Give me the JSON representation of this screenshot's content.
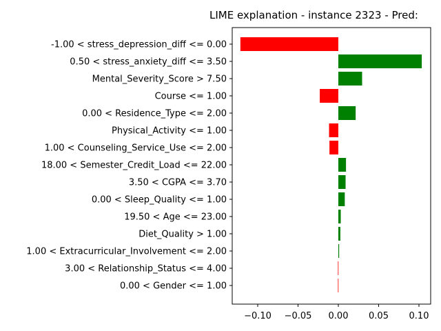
{
  "chart_data": {
    "type": "bar",
    "orientation": "horizontal",
    "title": "LIME explanation - instance 2323 - Pred:",
    "xlabel": "",
    "ylabel": "",
    "xlim": [
      -0.1215,
      0.1145
    ],
    "xticks": [
      -0.1,
      -0.05,
      0.0,
      0.05,
      0.1
    ],
    "xtick_labels": [
      "−0.10",
      "−0.05",
      "0.00",
      "0.05",
      "0.10"
    ],
    "grid": false,
    "legend": "none",
    "colors": {
      "positive": "#008000",
      "negative": "#ff0000"
    },
    "categories": [
      "-1.00 < stress_depression_diff <= 0.00",
      "0.50 < stress_anxiety_diff <= 3.50",
      "Mental_Severity_Score > 7.50",
      "Course <= 1.00",
      "0.00 < Residence_Type <= 2.00",
      "Physical_Activity <= 1.00",
      "1.00 < Counseling_Service_Use <= 2.00",
      "18.00 < Semester_Credit_Load <= 22.00",
      "3.50 < CGPA <= 3.70",
      "0.00 < Sleep_Quality <= 1.00",
      "19.50 < Age <= 23.00",
      "Diet_Quality > 1.00",
      "1.00 < Extracurricular_Involvement <= 2.00",
      "3.00 < Relationship_Status <= 4.00",
      "0.00 < Gender <= 1.00"
    ],
    "values": [
      -0.1215,
      0.1035,
      0.0295,
      -0.023,
      0.0215,
      -0.0115,
      -0.011,
      0.0095,
      0.009,
      0.008,
      0.003,
      0.0025,
      0.001,
      -0.0005,
      -0.0005
    ]
  }
}
